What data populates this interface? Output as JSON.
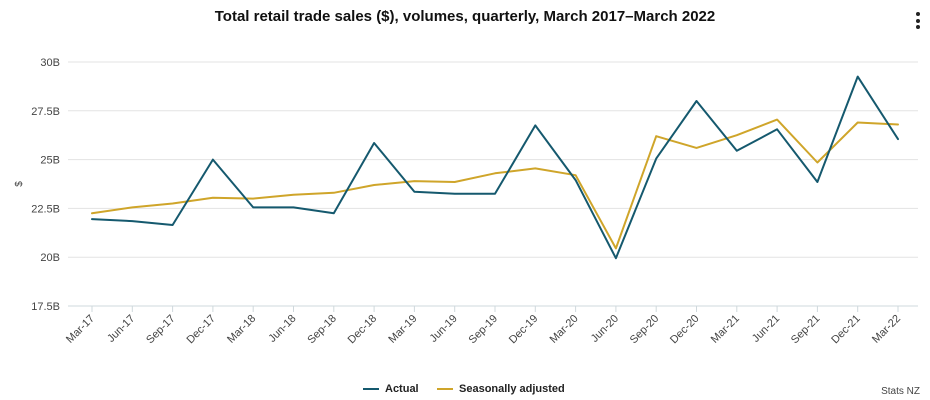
{
  "chart_data": {
    "type": "line",
    "title": "Total retail trade sales ($), volumes, quarterly, March 2017–March 2022",
    "ylabel": "$",
    "xlabel": "",
    "categories": [
      "Mar-17",
      "Jun-17",
      "Sep-17",
      "Dec-17",
      "Mar-18",
      "Jun-18",
      "Sep-18",
      "Dec-18",
      "Mar-19",
      "Jun-19",
      "Sep-19",
      "Dec-19",
      "Mar-20",
      "Jun-20",
      "Sep-20",
      "Dec-20",
      "Mar-21",
      "Jun-21",
      "Sep-21",
      "Dec-21",
      "Mar-22"
    ],
    "ylim": [
      17.5,
      30
    ],
    "yticks": [
      17.5,
      20,
      22.5,
      25,
      27.5,
      30
    ],
    "ytick_labels": [
      "17.5B",
      "20B",
      "22.5B",
      "25B",
      "27.5B",
      "30B"
    ],
    "grid": true,
    "legend_position": "bottom-center",
    "series": [
      {
        "name": "Actual",
        "color": "#15596e",
        "values": [
          21.95,
          21.85,
          21.65,
          25.0,
          22.55,
          22.55,
          22.25,
          25.85,
          23.35,
          23.25,
          23.25,
          26.75,
          23.95,
          19.95,
          25.05,
          28.0,
          25.45,
          26.55,
          23.85,
          29.25,
          26.05
        ]
      },
      {
        "name": "Seasonally adjusted",
        "color": "#cfa52a",
        "values": [
          22.25,
          22.55,
          22.75,
          23.05,
          23.0,
          23.2,
          23.3,
          23.7,
          23.9,
          23.85,
          24.3,
          24.55,
          24.2,
          20.45,
          26.2,
          25.6,
          26.25,
          27.05,
          24.85,
          26.9,
          26.8
        ]
      }
    ]
  },
  "legend": {
    "items": [
      {
        "label": "Actual",
        "color": "#15596e"
      },
      {
        "label": "Seasonally adjusted",
        "color": "#cfa52a"
      }
    ]
  },
  "credit": "Stats NZ",
  "menu_icon": "more-vertical-icon"
}
